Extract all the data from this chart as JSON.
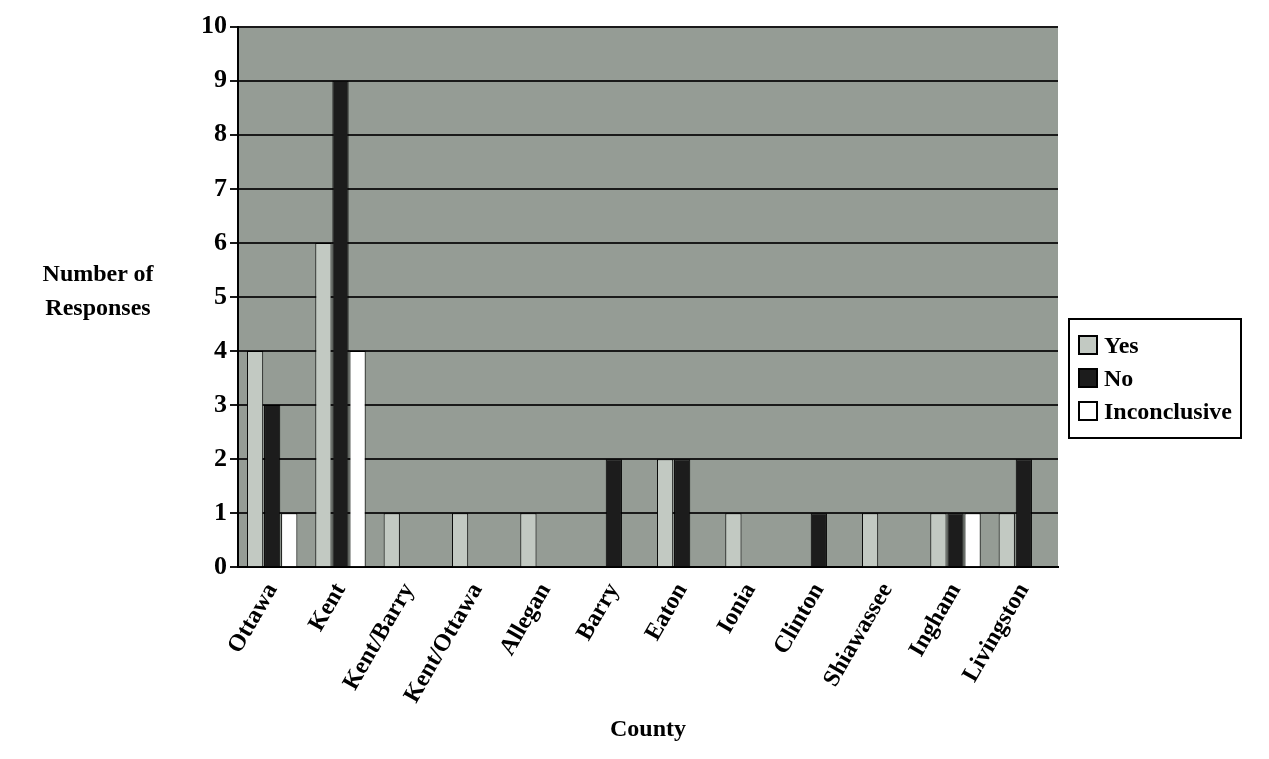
{
  "chart_data": {
    "type": "bar",
    "xlabel": "County",
    "ylabel": "Number of\nResponses",
    "categories": [
      "Ottawa",
      "Kent",
      "Kent/Barry",
      "Kent/Ottawa",
      "Allegan",
      "Barry",
      "Eaton",
      "Ionia",
      "Clinton",
      "Shiawassee",
      "Ingham",
      "Livingston"
    ],
    "series": [
      {
        "name": "Yes",
        "color": "#c2c9c2",
        "values": [
          4,
          6,
          1,
          1,
          1,
          0,
          2,
          1,
          0,
          1,
          1,
          1
        ]
      },
      {
        "name": "No",
        "color": "#1c1c1c",
        "values": [
          3,
          9,
          0,
          0,
          0,
          2,
          2,
          0,
          1,
          0,
          1,
          2
        ]
      },
      {
        "name": "Inconclusive",
        "color": "#ffffff",
        "values": [
          1,
          4,
          0,
          0,
          0,
          0,
          0,
          0,
          0,
          0,
          1,
          0
        ]
      }
    ],
    "ylim": [
      0,
      10
    ],
    "yticks": [
      0,
      1,
      2,
      3,
      4,
      5,
      6,
      7,
      8,
      9,
      10
    ],
    "grid": "y",
    "legend": "right"
  }
}
